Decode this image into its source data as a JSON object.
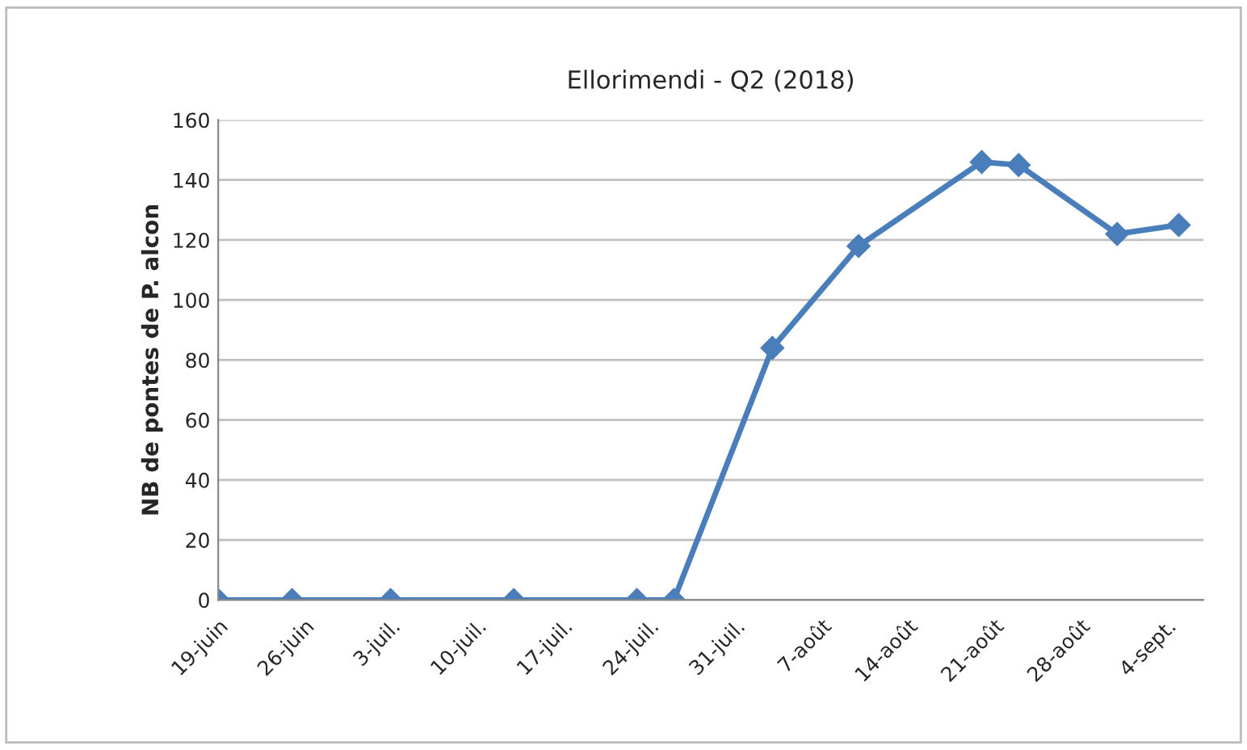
{
  "chart_data": {
    "type": "line",
    "title": "Ellorimendi - Q2 (2018)",
    "ylabel": "NB de pontes de P. alcon",
    "x": [
      "2018-06-19",
      "2018-06-25",
      "2018-07-03",
      "2018-07-13",
      "2018-07-23",
      "2018-07-26",
      "2018-08-03",
      "2018-08-10",
      "2018-08-20",
      "2018-08-23",
      "2018-08-31",
      "2018-09-05"
    ],
    "series": [
      {
        "color": "#4a7ebb",
        "values": [
          0,
          0,
          0,
          0,
          0,
          0,
          84,
          118,
          146,
          145,
          122,
          125
        ]
      }
    ],
    "xlim": [
      "2018-06-19",
      "2018-09-07"
    ],
    "xticks": [
      {
        "value": "2018-06-19",
        "label": "19-juin"
      },
      {
        "value": "2018-06-26",
        "label": "26-juin"
      },
      {
        "value": "2018-07-03",
        "label": "3-juil."
      },
      {
        "value": "2018-07-10",
        "label": "10-juil."
      },
      {
        "value": "2018-07-17",
        "label": "17-juil."
      },
      {
        "value": "2018-07-24",
        "label": "24-juil."
      },
      {
        "value": "2018-07-31",
        "label": "31-juil."
      },
      {
        "value": "2018-08-07",
        "label": "7-août"
      },
      {
        "value": "2018-08-14",
        "label": "14-août"
      },
      {
        "value": "2018-08-21",
        "label": "21-août"
      },
      {
        "value": "2018-08-28",
        "label": "28-août"
      },
      {
        "value": "2018-09-04",
        "label": "4-sept."
      }
    ],
    "ylim": [
      0,
      160
    ],
    "yticks": [
      0,
      20,
      40,
      60,
      80,
      100,
      120,
      140,
      160
    ],
    "grid": "y",
    "marker": "diamond",
    "line_style": "solid",
    "legend": false
  }
}
